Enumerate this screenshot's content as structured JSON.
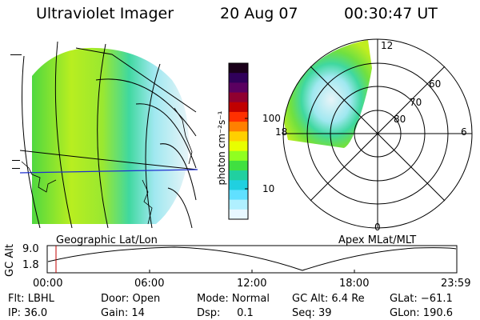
{
  "header": {
    "instrument": "Ultraviolet Imager",
    "date": "20 Aug 07",
    "time": "00:30:47 UT"
  },
  "colorbar": {
    "unit_label": "photon cm⁻²s⁻¹",
    "ticks": [
      "100",
      "10"
    ],
    "colors_top_to_bottom": [
      "#1a001a",
      "#30005a",
      "#5a0060",
      "#900030",
      "#c00000",
      "#ff3000",
      "#ff8000",
      "#ffd000",
      "#e8ff00",
      "#90ff20",
      "#40e040",
      "#20d0a0",
      "#20d0e0",
      "#60e0ff",
      "#b0f0ff",
      "#e8f8ff"
    ]
  },
  "geo_panel": {
    "label": "Geographic Lat/Lon"
  },
  "polar_panel": {
    "label": "Apex MLat/MLT",
    "mlt_labels": {
      "top": "12",
      "left": "18",
      "right": "6",
      "bottom": "0"
    },
    "lat_labels": [
      "60",
      "70",
      "80"
    ]
  },
  "timeline": {
    "ylabel": "GC Alt",
    "yticks": [
      "9.0",
      "1.8"
    ],
    "xticks": [
      "00:00",
      "06:00",
      "12:00",
      "18:00",
      "23:59"
    ]
  },
  "footer": {
    "flt": "Flt: LBHL",
    "ip": "IP: 36.0",
    "door": "Door: Open",
    "gain": "Gain: 14",
    "mode": "Mode: Normal",
    "dsp": "Dsp:     0.1",
    "gcalt": "GC Alt: 6.4 Re",
    "seq": "Seq: 39",
    "glat": "GLat: −61.1",
    "glon": "GLon: 190.6"
  }
}
